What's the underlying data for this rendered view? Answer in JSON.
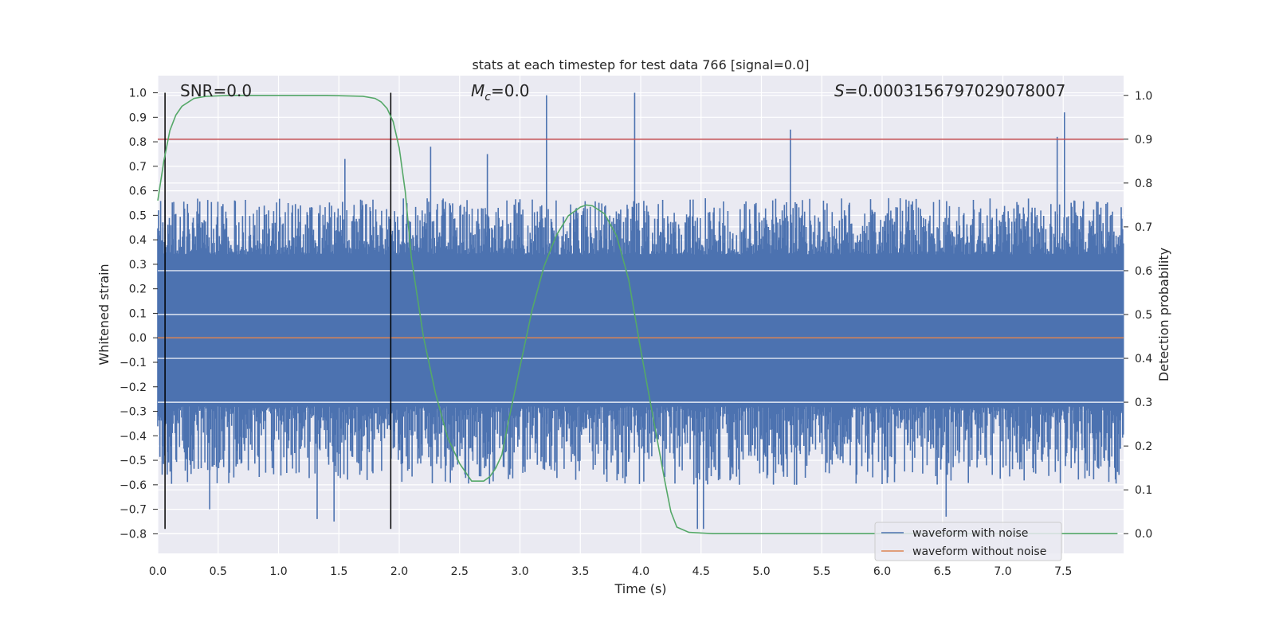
{
  "chart_data": {
    "type": "line",
    "title": "stats at each timestep for test data 766 [signal=0.0]",
    "xlabel": "Time (s)",
    "ylabel": "Whitened strain",
    "ylabel_right": "Detection probability",
    "xlim": [
      0.0,
      8.0
    ],
    "ylim": [
      -0.88,
      1.07
    ],
    "ylim_right": [
      -0.045,
      1.045
    ],
    "x_ticks": [
      "0.0",
      "0.5",
      "1.0",
      "1.5",
      "2.0",
      "2.5",
      "3.0",
      "3.5",
      "4.0",
      "4.5",
      "5.0",
      "5.5",
      "6.0",
      "6.5",
      "7.0",
      "7.5"
    ],
    "y_ticks": [
      "1.0",
      "0.9",
      "0.8",
      "0.7",
      "0.6",
      "0.5",
      "0.4",
      "0.3",
      "0.2",
      "0.1",
      "0.0",
      "−0.1",
      "−0.2",
      "−0.3",
      "−0.4",
      "−0.5",
      "−0.6",
      "−0.7",
      "−0.8"
    ],
    "y_right_ticks": [
      "1.0",
      "0.9",
      "0.8",
      "0.7",
      "0.6",
      "0.5",
      "0.4",
      "0.3",
      "0.2",
      "0.1",
      "0.0"
    ],
    "grid": true,
    "legend_position": "lower-right",
    "annotations": {
      "snr": "SNR=0.0",
      "mc": "=0.0",
      "mc_symbol": "M",
      "mc_subscript": "c",
      "s": "=0.0003156797029078007",
      "s_symbol": "S"
    },
    "series": [
      {
        "name": "waveform with noise",
        "color": "#4c72b0",
        "description_spikes": [
          {
            "x": 3.22,
            "y": 0.99
          },
          {
            "x": 3.95,
            "y": 1.0
          },
          {
            "x": 5.24,
            "y": 0.85
          },
          {
            "x": 7.51,
            "y": 0.92
          },
          {
            "x": 7.45,
            "y": 0.82
          },
          {
            "x": 4.47,
            "y": -0.78
          },
          {
            "x": 4.52,
            "y": -0.78
          },
          {
            "x": 6.53,
            "y": -0.73
          },
          {
            "x": 1.32,
            "y": -0.74
          },
          {
            "x": 1.46,
            "y": -0.75
          },
          {
            "x": 0.43,
            "y": -0.7
          },
          {
            "x": 1.55,
            "y": 0.73
          },
          {
            "x": 2.26,
            "y": 0.78
          },
          {
            "x": 2.73,
            "y": 0.75
          }
        ],
        "envelope": {
          "positive_typical": 0.45,
          "negative_typical": -0.5,
          "band": [
            -0.28,
            0.34
          ]
        }
      },
      {
        "name": "waveform without noise",
        "color": "#dd8452",
        "x": [
          0.0,
          8.0
        ],
        "y": [
          0.0,
          0.0
        ]
      },
      {
        "name": "detection probability",
        "color": "#55a868",
        "axis": "right",
        "x": [
          0.0,
          0.05,
          0.1,
          0.15,
          0.2,
          0.3,
          0.4,
          0.6,
          1.0,
          1.4,
          1.7,
          1.8,
          1.85,
          1.9,
          1.95,
          2.0,
          2.05,
          2.1,
          2.2,
          2.3,
          2.4,
          2.5,
          2.6,
          2.7,
          2.75,
          2.8,
          2.85,
          2.9,
          3.0,
          3.1,
          3.2,
          3.3,
          3.4,
          3.5,
          3.55,
          3.6,
          3.7,
          3.8,
          3.9,
          4.0,
          4.1,
          4.2,
          4.25,
          4.3,
          4.4,
          4.6,
          5.0,
          6.0,
          7.0,
          7.95
        ],
        "y": [
          0.76,
          0.85,
          0.92,
          0.955,
          0.975,
          0.993,
          0.998,
          1.0,
          1.0,
          1.0,
          0.998,
          0.993,
          0.985,
          0.97,
          0.94,
          0.88,
          0.78,
          0.63,
          0.45,
          0.32,
          0.22,
          0.16,
          0.12,
          0.12,
          0.13,
          0.15,
          0.18,
          0.25,
          0.38,
          0.51,
          0.61,
          0.68,
          0.725,
          0.745,
          0.75,
          0.748,
          0.73,
          0.68,
          0.58,
          0.42,
          0.27,
          0.12,
          0.05,
          0.015,
          0.003,
          0.0,
          0.0,
          0.0,
          0.0,
          0.0
        ]
      },
      {
        "name": "threshold",
        "color": "#c44e52",
        "axis": "right",
        "y": 0.9
      }
    ],
    "vlines": [
      0.06,
      1.93
    ],
    "legend": [
      "waveform with noise",
      "waveform without noise"
    ]
  }
}
